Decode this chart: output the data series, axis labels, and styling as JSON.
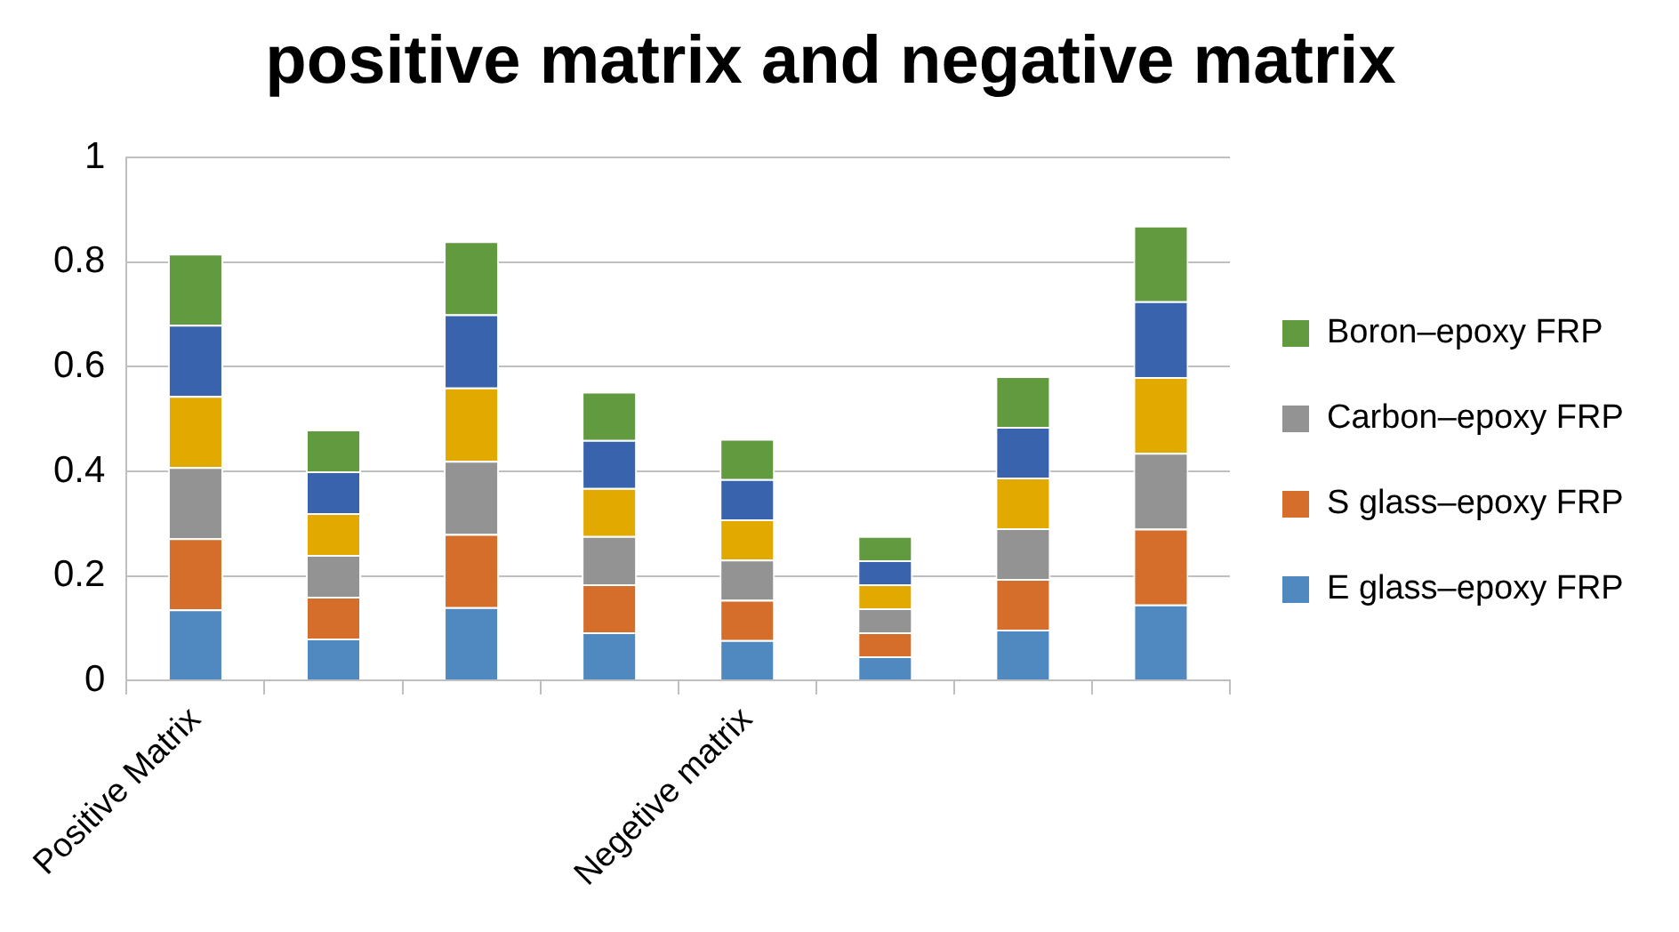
{
  "chart_data": {
    "type": "bar",
    "title": "positive matrix and negative matrix",
    "categories": [
      "Positive Matrix",
      null,
      null,
      null,
      "Negetive matrix",
      null,
      null,
      null
    ],
    "stacked": true,
    "ylim": [
      0,
      1
    ],
    "yticks": [
      0,
      0.2,
      0.4,
      0.6,
      0.8,
      1
    ],
    "grid": "y",
    "legend": "right",
    "series": [
      {
        "name": "E glass–epoxy FRP",
        "color": "#4f89c0",
        "values": [
          0.136,
          0.08,
          0.14,
          0.092,
          0.077,
          0.046,
          0.097,
          0.145
        ]
      },
      {
        "name": "S glass–epoxy FRP",
        "color": "#d46e2a",
        "values": [
          0.136,
          0.08,
          0.14,
          0.092,
          0.077,
          0.046,
          0.097,
          0.145
        ]
      },
      {
        "name": "Carbon–epoxy FRP",
        "color": "#939393",
        "values": [
          0.136,
          0.08,
          0.14,
          0.092,
          0.077,
          0.046,
          0.097,
          0.145
        ]
      },
      {
        "color": "#e2aa00",
        "values": [
          0.136,
          0.08,
          0.14,
          0.092,
          0.077,
          0.046,
          0.097,
          0.145
        ]
      },
      {
        "color": "#3a63ae",
        "values": [
          0.136,
          0.08,
          0.14,
          0.092,
          0.077,
          0.046,
          0.097,
          0.145
        ]
      },
      {
        "name": "Boron–epoxy FRP",
        "color": "#629a3f",
        "values": [
          0.136,
          0.08,
          0.14,
          0.092,
          0.077,
          0.046,
          0.097,
          0.145
        ]
      }
    ]
  }
}
